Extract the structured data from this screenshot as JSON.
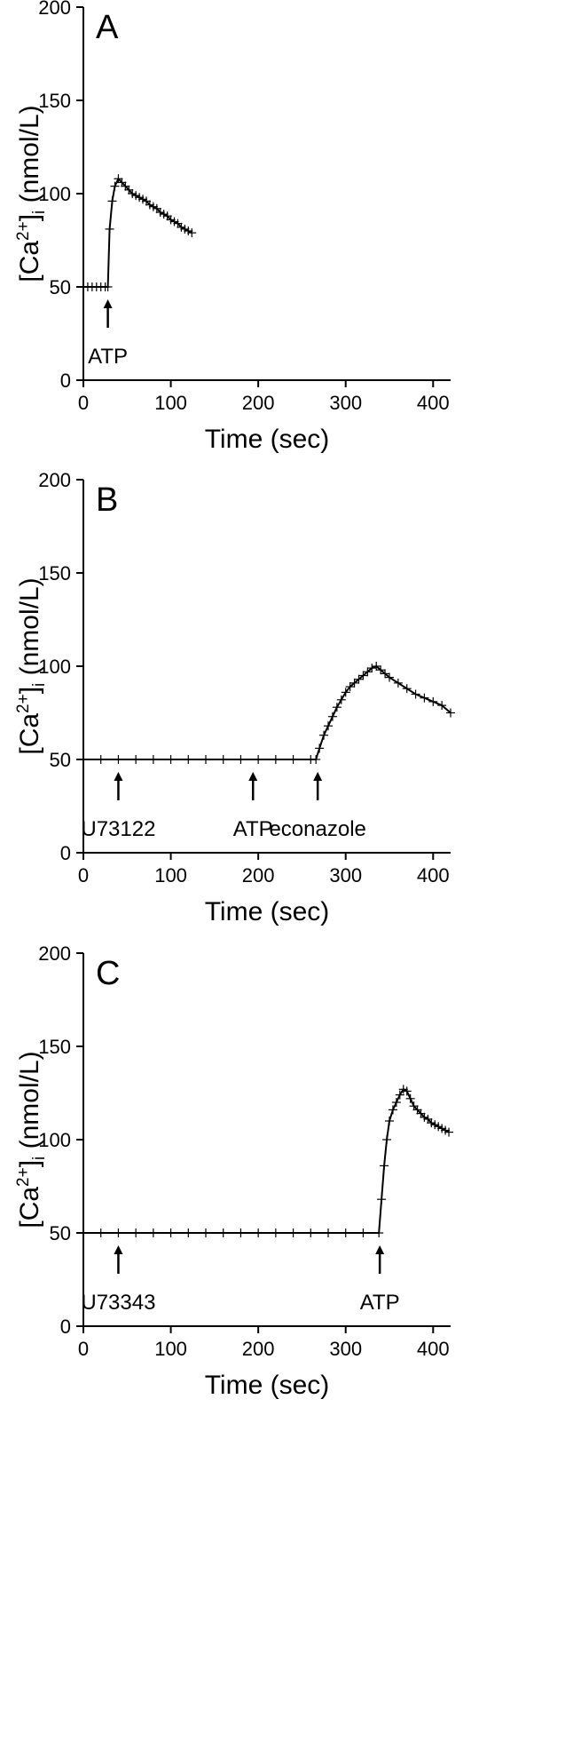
{
  "chart_data": [
    {
      "type": "line",
      "panel_label": "A",
      "xlabel": "Time (sec)",
      "ylabel": {
        "prefix": "[Ca",
        "sup": "2+",
        "mid": "]",
        "sub": "i",
        "suffix": " (nmol/L)"
      },
      "xlim": [
        0,
        420
      ],
      "ylim": [
        0,
        200
      ],
      "xticks": [
        "0",
        "100",
        "200",
        "300",
        "400"
      ],
      "yticks": [
        "0",
        "50",
        "100",
        "150",
        "200"
      ],
      "series": [
        {
          "x": [
            0,
            5,
            10,
            15,
            20,
            25,
            28,
            30,
            33,
            36,
            40,
            44,
            48,
            52,
            56,
            60,
            64,
            68,
            72,
            76,
            80,
            84,
            88,
            92,
            96,
            100,
            104,
            108,
            112,
            116,
            120,
            124
          ],
          "y": [
            50,
            50,
            50,
            50,
            50,
            50,
            50,
            81,
            96,
            104,
            108,
            106,
            104,
            102,
            100,
            99,
            98,
            97,
            96,
            94,
            93,
            92,
            90,
            89,
            88,
            86,
            85,
            84,
            82,
            81,
            80,
            79
          ]
        }
      ],
      "annotations": [
        {
          "label": "ATP",
          "x": 28
        }
      ]
    },
    {
      "type": "line",
      "panel_label": "B",
      "xlabel": "Time (sec)",
      "ylabel": {
        "prefix": "[Ca",
        "sup": "2+",
        "mid": "]",
        "sub": "i",
        "suffix": " (nmol/L)"
      },
      "xlim": [
        0,
        420
      ],
      "ylim": [
        0,
        200
      ],
      "xticks": [
        "0",
        "100",
        "200",
        "300",
        "400"
      ],
      "yticks": [
        "0",
        "50",
        "100",
        "150",
        "200"
      ],
      "series": [
        {
          "x": [
            0,
            20,
            40,
            60,
            80,
            100,
            120,
            140,
            160,
            180,
            200,
            220,
            240,
            260,
            266,
            270,
            275,
            280,
            285,
            290,
            295,
            300,
            305,
            310,
            315,
            320,
            325,
            330,
            335,
            340,
            345,
            350,
            360,
            370,
            380,
            390,
            400,
            410,
            420
          ],
          "y": [
            50,
            50,
            50,
            50,
            50,
            50,
            50,
            50,
            50,
            50,
            50,
            50,
            50,
            50,
            50,
            56,
            63,
            68,
            73,
            78,
            82,
            86,
            89,
            91,
            93,
            95,
            97,
            99,
            100,
            98,
            96,
            94,
            91,
            88,
            85,
            83,
            81,
            79,
            75
          ]
        }
      ],
      "annotations": [
        {
          "label": "U73122",
          "x": 40
        },
        {
          "label": "ATP",
          "x": 194
        },
        {
          "label": "econazole",
          "x": 268
        }
      ]
    },
    {
      "type": "line",
      "panel_label": "C",
      "xlabel": "Time (sec)",
      "ylabel": {
        "prefix": "[Ca",
        "sup": "2+",
        "mid": "]",
        "sub": "i",
        "suffix": " (nmol/L)"
      },
      "xlim": [
        0,
        420
      ],
      "ylim": [
        0,
        200
      ],
      "xticks": [
        "0",
        "100",
        "200",
        "300",
        "400"
      ],
      "yticks": [
        "0",
        "50",
        "100",
        "150",
        "200"
      ],
      "series": [
        {
          "x": [
            0,
            20,
            40,
            60,
            80,
            100,
            120,
            140,
            160,
            180,
            200,
            220,
            240,
            260,
            280,
            300,
            320,
            338,
            341,
            344,
            347,
            350,
            354,
            358,
            362,
            366,
            370,
            374,
            378,
            382,
            386,
            390,
            394,
            398,
            402,
            406,
            410,
            414,
            418
          ],
          "y": [
            50,
            50,
            50,
            50,
            50,
            50,
            50,
            50,
            50,
            50,
            50,
            50,
            50,
            50,
            50,
            50,
            50,
            50,
            68,
            86,
            100,
            110,
            116,
            120,
            124,
            127,
            126,
            122,
            118,
            116,
            114,
            112,
            111,
            109,
            108,
            107,
            106,
            105,
            104
          ]
        }
      ],
      "annotations": [
        {
          "label": "U73343",
          "x": 40
        },
        {
          "label": "ATP",
          "x": 339
        }
      ]
    }
  ]
}
